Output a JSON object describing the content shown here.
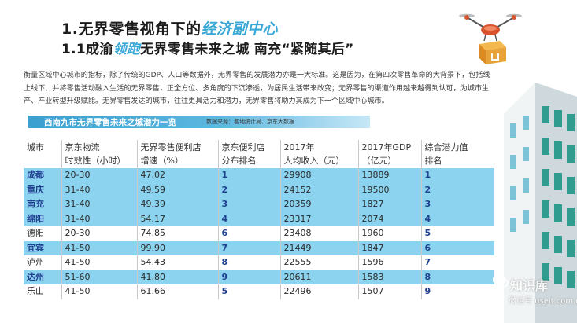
{
  "heading": {
    "line1_prefix": "1.无界零售视角下的",
    "line1_accent": "经济副中心",
    "line2_prefix": "1.1成渝",
    "line2_accent": "领跑",
    "line2_suffix": "无界零售未来之城 南充“紧随其后”"
  },
  "body_text": "衡量区域中心城市的指标，除了传统的GDP、人口等数据外，无界零售的发展潜力亦是一大标准。这是因为，在第四次零售革命的大背景下，包括线上线下、并将零售活动融入生活的无界零售，正全方位、多角度的下沉渗透，为居民生活带来改变；无界零售的渠道作用越来越得到认可，为城市生产、产业转型升级赋能。无界零售发达的城市，往往更具活力和潜力，无界零售将助力其成为下一个区域中心城市。",
  "table": {
    "title": "西南九市无界零售未来之城潜力一览",
    "source": "数据来源：各地统计局、京东大数据",
    "headers": [
      {
        "line1": "城市",
        "line2": ""
      },
      {
        "line1": "京东物流",
        "line2": "时效性（小时）"
      },
      {
        "line1": "无界零售便利店",
        "line2": "增速（%）"
      },
      {
        "line1": "京东便利店",
        "line2": "分布排名"
      },
      {
        "line1": "2017年",
        "line2": "人均收入（元）"
      },
      {
        "line1": "2017年GDP",
        "line2": "（亿元）"
      },
      {
        "line1": "综合潜力值",
        "line2": "排名"
      }
    ],
    "rows": [
      {
        "city": "成都",
        "logistics": "20-30",
        "growth": "47.02",
        "store_rank": "1",
        "income": "29908",
        "gdp": "13889",
        "potential_rank": "1",
        "shaded": true
      },
      {
        "city": "重庆",
        "logistics": "31-40",
        "growth": "49.59",
        "store_rank": "2",
        "income": "24152",
        "gdp": "19500",
        "potential_rank": "2",
        "shaded": true
      },
      {
        "city": "南充",
        "logistics": "31-40",
        "growth": "49.39",
        "store_rank": "3",
        "income": "20359",
        "gdp": "1827",
        "potential_rank": "3",
        "shaded": true
      },
      {
        "city": "绵阳",
        "logistics": "31-40",
        "growth": "54.17",
        "store_rank": "4",
        "income": "23317",
        "gdp": "2074",
        "potential_rank": "4",
        "shaded": true
      },
      {
        "city": "德阳",
        "logistics": "20-30",
        "growth": "74.85",
        "store_rank": "6",
        "income": "23408",
        "gdp": "1960",
        "potential_rank": "5",
        "shaded": false
      },
      {
        "city": "宜宾",
        "logistics": "41-50",
        "growth": "99.90",
        "store_rank": "7",
        "income": "21449",
        "gdp": "1847",
        "potential_rank": "6",
        "shaded": true
      },
      {
        "city": "泸州",
        "logistics": "41-50",
        "growth": "54.43",
        "store_rank": "8",
        "income": "22555",
        "gdp": "1596",
        "potential_rank": "7",
        "shaded": false
      },
      {
        "city": "达州",
        "logistics": "51-60",
        "growth": "41.80",
        "store_rank": "9",
        "income": "20611",
        "gdp": "1583",
        "potential_rank": "8",
        "shaded": true
      },
      {
        "city": "乐山",
        "logistics": "41-50",
        "growth": "61.66",
        "store_rank": "5",
        "income": "22496",
        "gdp": "1507",
        "potential_rank": "9",
        "shaded": false
      }
    ]
  },
  "watermark": {
    "title": "知识库",
    "sub": "微信号 useit.com.cn"
  },
  "colors": {
    "accent_blue": "#39a8d6",
    "row_shade": "#8bd3ee",
    "rank_text": "#1f3f8f",
    "drone_red": "#d9532c",
    "parcel": "#e8a23a"
  },
  "icons": [
    "drone-icon",
    "parcel-icon",
    "building-illustration",
    "wechat-icon"
  ]
}
